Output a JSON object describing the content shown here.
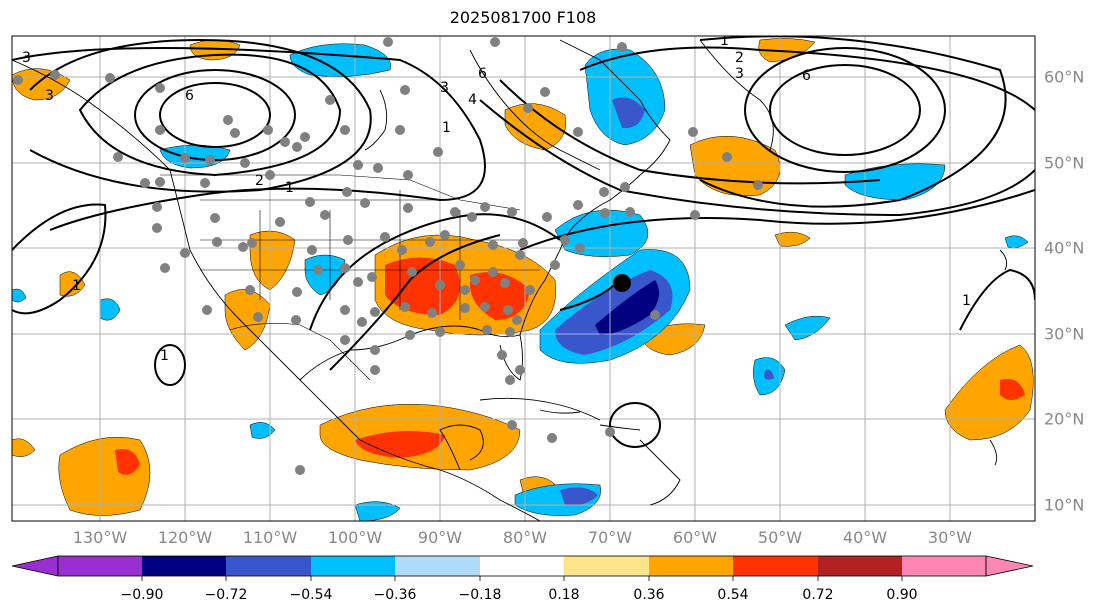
{
  "title": "2025081700 F108",
  "lon_labels": [
    "130°W",
    "120°W",
    "110°W",
    "100°W",
    "90°W",
    "80°W",
    "70°W",
    "60°W",
    "50°W",
    "40°W",
    "30°W"
  ],
  "lat_labels": [
    "60°N",
    "50°N",
    "40°N",
    "30°N",
    "20°N",
    "10°N"
  ],
  "colorbar": {
    "tick_labels": [
      "−0.90",
      "−0.72",
      "−0.54",
      "−0.36",
      "−0.18",
      "0.18",
      "0.36",
      "0.54",
      "0.72",
      "0.90"
    ],
    "colors": [
      "#9a2fd1",
      "#000080",
      "#3a56cc",
      "#00bfff",
      "#aedcf8",
      "#ffffff",
      "#fbe48a",
      "#ffa500",
      "#ff3300",
      "#b22222",
      "#ff85b4"
    ]
  },
  "contour_labels": [
    "3",
    "6",
    "3",
    "4",
    "2",
    "1",
    "3",
    "6",
    "2",
    "1",
    "3",
    "6",
    "1",
    "1",
    "1",
    "1"
  ],
  "map_colors": {
    "land_outline": "#000000",
    "grid": "#b0b0b0",
    "obs_dot": "#808080",
    "center_dot": "#000000"
  }
}
